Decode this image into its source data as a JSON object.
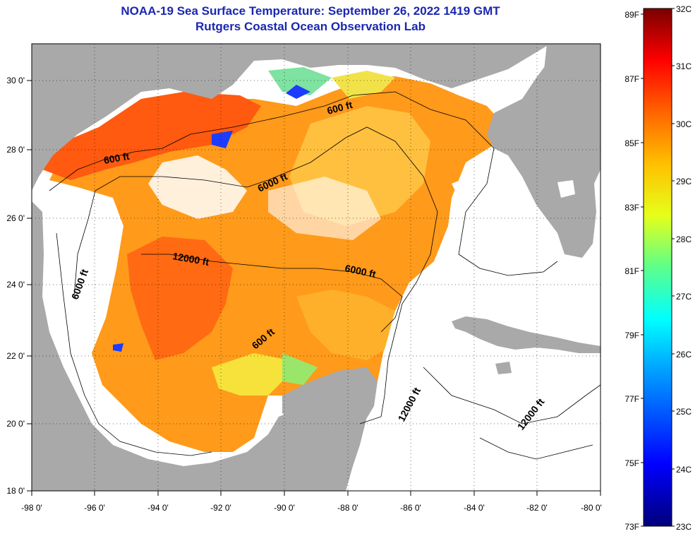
{
  "title": {
    "line1": "NOAA-19 Sea Surface Temperature:  September 26, 2022 1419 GMT",
    "line2": "Rutgers Coastal Ocean Observation Lab"
  },
  "axes": {
    "lon_labels": [
      "-98 0'",
      "-96 0'",
      "-94 0'",
      "-92 0'",
      "-90 0'",
      "-88 0'",
      "-86 0'",
      "-84 0'",
      "-82 0'",
      "-80 0'"
    ],
    "lat_labels": [
      "18 0'",
      "20 0'",
      "22 0'",
      "24 0'",
      "26 0'",
      "28 0'",
      "30 0'"
    ],
    "lon_range": [
      -98,
      -80
    ],
    "lat_range": [
      18,
      31
    ]
  },
  "colorbar": {
    "celsius_labels": [
      "32C",
      "31C",
      "30C",
      "29C",
      "28C",
      "27C",
      "26C",
      "25C",
      "24C",
      "23C"
    ],
    "fahrenheit_labels": [
      "89F",
      "87F",
      "85F",
      "83F",
      "81F",
      "79F",
      "77F",
      "75F",
      "73F"
    ],
    "range_c": [
      23,
      32
    ]
  },
  "contour_labels": [
    "600 ft",
    "600 ft",
    "600 ft",
    "6000 ft",
    "6000 ft",
    "6000 ft",
    "12000 ft",
    "12000 ft",
    "12000 ft"
  ],
  "colors": {
    "title": "#1a27b0",
    "land": "#a9a9a9",
    "cloud": "#ffffff"
  }
}
